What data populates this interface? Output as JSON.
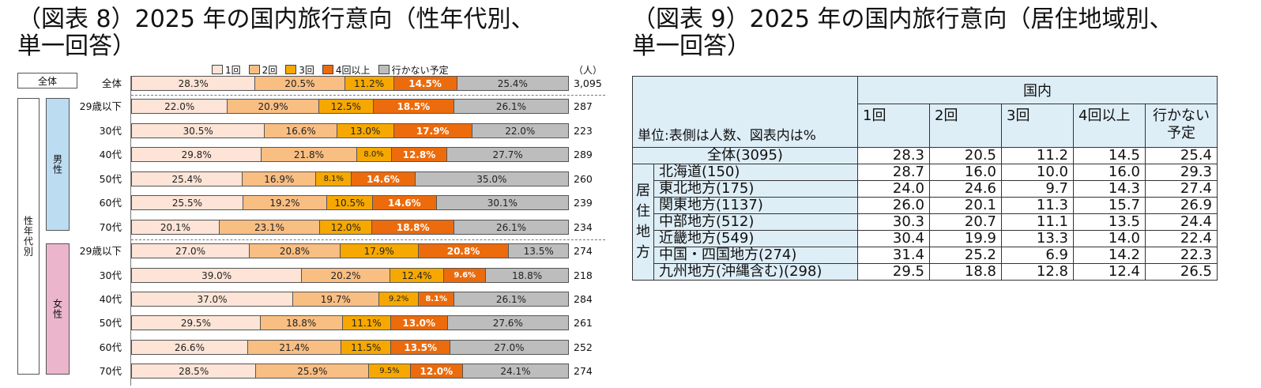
{
  "left_title": {
    "line1": "（図表 8）2025 年の国内旅行意向（性年代別、",
    "line2": "単一回答）"
  },
  "right_title": {
    "line1": "（図表 9）2025 年の国内旅行意向（居住地域別、",
    "line2": "単一回答）"
  },
  "colors": {
    "s1": "#fde4d6",
    "s2": "#f9be82",
    "s3": "#f6a800",
    "s4": "#ec6b0c",
    "s5": "#bdbdbd"
  },
  "chart_data": [
    {
      "type": "bar",
      "orientation": "horizontal-stacked-percent",
      "title": "（図表 8）2025 年の国内旅行意向（性年代別、単一回答）",
      "unit_label": "（人）",
      "legend": [
        "1回",
        "2回",
        "3回",
        "4回以上",
        "行かない予定"
      ],
      "group_labels": {
        "all": "全体",
        "gender_age": "性年代別",
        "male": "男性",
        "female": "女性"
      },
      "rows": [
        {
          "group": "all",
          "label": "全体",
          "values": [
            28.3,
            20.5,
            11.2,
            14.5,
            25.4
          ],
          "n": "3,095"
        },
        {
          "group": "male",
          "label": "29歳以下",
          "values": [
            22.0,
            20.9,
            12.5,
            18.5,
            26.1
          ],
          "n": "287"
        },
        {
          "group": "male",
          "label": "30代",
          "values": [
            30.5,
            16.6,
            13.0,
            17.9,
            22.0
          ],
          "n": "223"
        },
        {
          "group": "male",
          "label": "40代",
          "values": [
            29.8,
            21.8,
            8.0,
            12.8,
            27.7
          ],
          "n": "289"
        },
        {
          "group": "male",
          "label": "50代",
          "values": [
            25.4,
            16.9,
            8.1,
            14.6,
            35.0
          ],
          "n": "260"
        },
        {
          "group": "male",
          "label": "60代",
          "values": [
            25.5,
            19.2,
            10.5,
            14.6,
            30.1
          ],
          "n": "239"
        },
        {
          "group": "male",
          "label": "70代",
          "values": [
            20.1,
            23.1,
            12.0,
            18.8,
            26.1
          ],
          "n": "234"
        },
        {
          "group": "female",
          "label": "29歳以下",
          "values": [
            27.0,
            20.8,
            17.9,
            20.8,
            13.5
          ],
          "n": "274"
        },
        {
          "group": "female",
          "label": "30代",
          "values": [
            39.0,
            20.2,
            12.4,
            9.6,
            18.8
          ],
          "n": "218"
        },
        {
          "group": "female",
          "label": "40代",
          "values": [
            37.0,
            19.7,
            9.2,
            8.1,
            26.1
          ],
          "n": "284"
        },
        {
          "group": "female",
          "label": "50代",
          "values": [
            29.5,
            18.8,
            11.1,
            13.0,
            27.6
          ],
          "n": "261"
        },
        {
          "group": "female",
          "label": "60代",
          "values": [
            26.6,
            21.4,
            11.5,
            13.5,
            27.0
          ],
          "n": "252"
        },
        {
          "group": "female",
          "label": "70代",
          "values": [
            28.5,
            25.9,
            9.5,
            12.0,
            24.1
          ],
          "n": "274"
        }
      ]
    },
    {
      "type": "table",
      "title": "（図表 9）2025 年の国内旅行意向（居住地域別、単一回答）",
      "unit_note": "単位:表側は人数、図表内は%",
      "group_header": "国内",
      "columns": [
        "1回",
        "2回",
        "3回",
        "4回以上",
        "行かない予定"
      ],
      "columns_display": [
        [
          "1回"
        ],
        [
          "2回"
        ],
        [
          "3回"
        ],
        [
          "4回以上"
        ],
        [
          "行かない",
          "予定"
        ]
      ],
      "side_group": [
        "居",
        "住",
        "地",
        "方"
      ],
      "total_row": {
        "label": "全体(3095)",
        "values": [
          "28.3",
          "20.5",
          "11.2",
          "14.5",
          "25.4"
        ]
      },
      "rows": [
        {
          "label": "北海道(150)",
          "values": [
            "28.7",
            "16.0",
            "10.0",
            "16.0",
            "29.3"
          ]
        },
        {
          "label": "東北地方(175)",
          "values": [
            "24.0",
            "24.6",
            "9.7",
            "14.3",
            "27.4"
          ]
        },
        {
          "label": "関東地方(1137)",
          "values": [
            "26.0",
            "20.1",
            "11.3",
            "15.7",
            "26.9"
          ]
        },
        {
          "label": "中部地方(512)",
          "values": [
            "30.3",
            "20.7",
            "11.1",
            "13.5",
            "24.4"
          ]
        },
        {
          "label": "近畿地方(549)",
          "values": [
            "30.4",
            "19.9",
            "13.3",
            "14.0",
            "22.4"
          ]
        },
        {
          "label": "中国・四国地方(274)",
          "values": [
            "31.4",
            "25.2",
            "6.9",
            "14.2",
            "22.3"
          ]
        },
        {
          "label": "九州地方(沖縄含む)(298)",
          "values": [
            "29.5",
            "18.8",
            "12.8",
            "12.4",
            "26.5"
          ]
        }
      ]
    }
  ]
}
